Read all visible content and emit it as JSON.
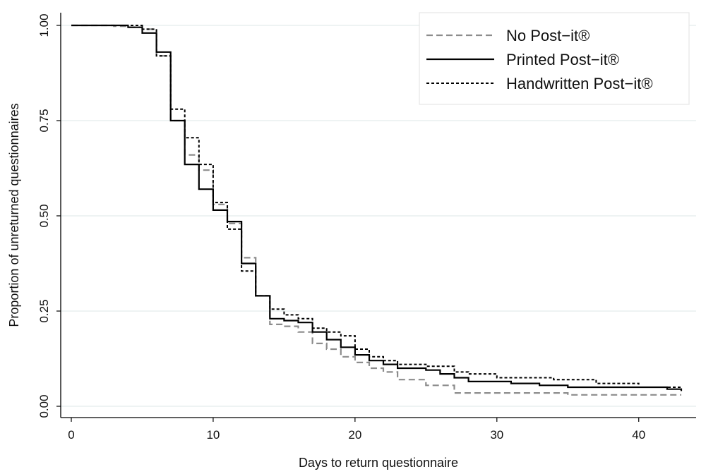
{
  "chart_data": {
    "type": "line",
    "subtype": "step",
    "title": "",
    "xlabel": "Days to return questionnaire",
    "ylabel": "Proportion of unreturned questionnaires",
    "xlim": [
      0,
      43
    ],
    "ylim": [
      0,
      1
    ],
    "x_ticks": [
      0,
      10,
      20,
      30,
      40
    ],
    "x_tick_labels": [
      "0",
      "10",
      "20",
      "30",
      "40"
    ],
    "y_ticks": [
      0,
      0.25,
      0.5,
      0.75,
      1
    ],
    "y_tick_labels": [
      "0.00",
      "0.25",
      "0.50",
      "0.75",
      "1.00"
    ],
    "grid": "horizontal",
    "legend_position": "top-right",
    "series": [
      {
        "name": "No Post−it®",
        "color": "#8c8c8c",
        "dash": "dashed",
        "x": [
          0,
          3,
          4,
          5,
          6,
          7,
          8,
          9,
          10,
          11,
          12,
          13,
          14,
          15,
          16,
          17,
          18,
          19,
          20,
          21,
          22,
          23,
          25,
          27,
          35,
          43
        ],
        "y": [
          1.0,
          0.998,
          0.995,
          0.99,
          0.92,
          0.75,
          0.66,
          0.62,
          0.53,
          0.48,
          0.39,
          0.29,
          0.215,
          0.21,
          0.195,
          0.165,
          0.15,
          0.13,
          0.115,
          0.1,
          0.09,
          0.07,
          0.055,
          0.035,
          0.03,
          0.03
        ]
      },
      {
        "name": "Printed Post−it®",
        "color": "#000000",
        "dash": "solid",
        "x": [
          0,
          4,
          5,
          6,
          7,
          8,
          9,
          10,
          11,
          12,
          13,
          14,
          15,
          16,
          17,
          18,
          19,
          20,
          21,
          22,
          23,
          25,
          26,
          27,
          28,
          31,
          33,
          35,
          42,
          43
        ],
        "y": [
          1.0,
          0.995,
          0.98,
          0.93,
          0.75,
          0.635,
          0.57,
          0.515,
          0.485,
          0.375,
          0.29,
          0.23,
          0.225,
          0.22,
          0.195,
          0.175,
          0.155,
          0.135,
          0.12,
          0.11,
          0.1,
          0.095,
          0.085,
          0.075,
          0.065,
          0.06,
          0.055,
          0.05,
          0.045,
          0.04
        ]
      },
      {
        "name": "Handwritten Post−it®",
        "color": "#000000",
        "dash": "dotted",
        "x": [
          0,
          5,
          6,
          7,
          8,
          9,
          10,
          11,
          12,
          13,
          14,
          15,
          16,
          17,
          18,
          19,
          20,
          21,
          22,
          23,
          25,
          27,
          28,
          30,
          34,
          37,
          40,
          43
        ],
        "y": [
          1.0,
          0.99,
          0.92,
          0.78,
          0.705,
          0.635,
          0.535,
          0.465,
          0.355,
          0.29,
          0.255,
          0.24,
          0.23,
          0.205,
          0.195,
          0.185,
          0.15,
          0.13,
          0.12,
          0.11,
          0.105,
          0.09,
          0.085,
          0.075,
          0.07,
          0.06,
          0.05,
          0.045
        ]
      }
    ]
  }
}
